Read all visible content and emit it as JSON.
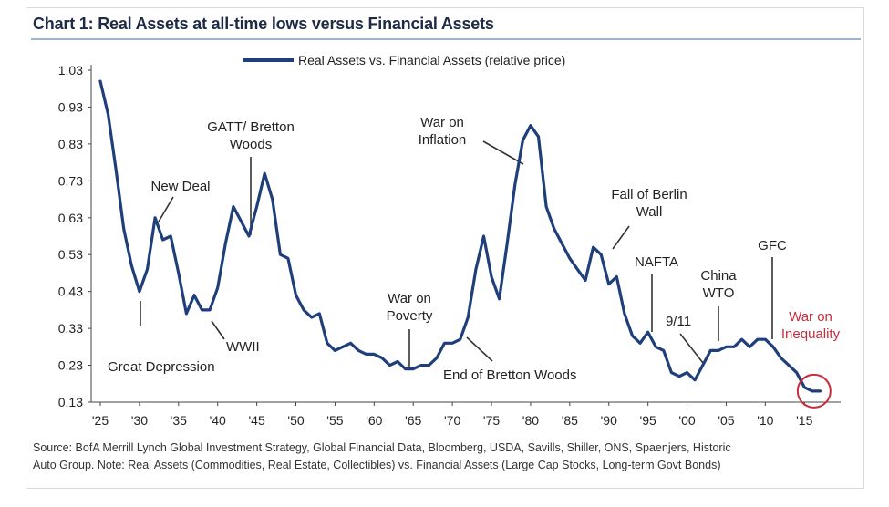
{
  "page_title": "Chart 1:  Real Assets at all-time lows versus Financial Assets",
  "source_note": {
    "line1": "Source:  BofA Merrill Lynch Global Investment Strategy, Global Financial Data, Bloomberg, USDA, Savills, Shiller, ONS, Spaenjers, Historic",
    "line2": "Auto Group. Note:  Real Assets (Commodities, Real Estate, Collectibles) vs. Financial Assets (Large Cap Stocks, Long-term Govt Bonds)"
  },
  "colors": {
    "series": "#1f3f7a",
    "highlight": "#cc2b3b",
    "annotation": "#222222"
  },
  "chart_data": {
    "type": "line",
    "title": "",
    "xlabel": "",
    "ylabel": "",
    "xlim": [
      1925,
      2018
    ],
    "ylim": [
      0.13,
      1.03
    ],
    "yticks": [
      1.03,
      0.93,
      0.83,
      0.73,
      0.63,
      0.53,
      0.43,
      0.33,
      0.23,
      0.13
    ],
    "ytick_labels": [
      "1.03",
      "0.93",
      "0.83",
      "0.73",
      "0.63",
      "0.53",
      "0.43",
      "0.33",
      "0.23",
      "0.13"
    ],
    "xticks": [
      1925,
      1930,
      1935,
      1940,
      1945,
      1950,
      1955,
      1960,
      1965,
      1970,
      1975,
      1980,
      1985,
      1990,
      1995,
      2000,
      2005,
      2010,
      2015
    ],
    "xtick_labels": [
      "'25",
      "'30",
      "'35",
      "'40",
      "'45",
      "'50",
      "'55",
      "'60",
      "'65",
      "'70",
      "'75",
      "'80",
      "'85",
      "'90",
      "'95",
      "'00",
      "'05",
      "'10",
      "'15"
    ],
    "grid": false,
    "legend_position": "top-center",
    "series": [
      {
        "name": "Real Assets vs. Financial Assets (relative price)",
        "x": [
          1925,
          1926,
          1927,
          1928,
          1929,
          1930,
          1931,
          1932,
          1933,
          1934,
          1935,
          1936,
          1937,
          1938,
          1939,
          1940,
          1941,
          1942,
          1943,
          1944,
          1945,
          1946,
          1947,
          1948,
          1949,
          1950,
          1951,
          1952,
          1953,
          1954,
          1955,
          1956,
          1957,
          1958,
          1959,
          1960,
          1961,
          1962,
          1963,
          1964,
          1965,
          1966,
          1967,
          1968,
          1969,
          1970,
          1971,
          1972,
          1973,
          1974,
          1975,
          1976,
          1977,
          1978,
          1979,
          1980,
          1981,
          1982,
          1983,
          1984,
          1985,
          1986,
          1987,
          1988,
          1989,
          1990,
          1991,
          1992,
          1993,
          1994,
          1995,
          1996,
          1997,
          1998,
          1999,
          2000,
          2001,
          2002,
          2003,
          2004,
          2005,
          2006,
          2007,
          2008,
          2009,
          2010,
          2011,
          2012,
          2013,
          2014,
          2015,
          2016,
          2017
        ],
        "values": [
          1.0,
          0.91,
          0.76,
          0.6,
          0.5,
          0.43,
          0.49,
          0.63,
          0.57,
          0.58,
          0.48,
          0.37,
          0.42,
          0.38,
          0.38,
          0.44,
          0.56,
          0.66,
          0.62,
          0.58,
          0.66,
          0.75,
          0.68,
          0.53,
          0.52,
          0.42,
          0.38,
          0.36,
          0.37,
          0.29,
          0.27,
          0.28,
          0.29,
          0.27,
          0.26,
          0.26,
          0.25,
          0.23,
          0.24,
          0.22,
          0.22,
          0.23,
          0.23,
          0.25,
          0.29,
          0.29,
          0.3,
          0.36,
          0.49,
          0.58,
          0.47,
          0.41,
          0.56,
          0.72,
          0.84,
          0.88,
          0.85,
          0.66,
          0.6,
          0.56,
          0.52,
          0.49,
          0.46,
          0.55,
          0.53,
          0.45,
          0.47,
          0.37,
          0.31,
          0.29,
          0.32,
          0.28,
          0.27,
          0.21,
          0.2,
          0.21,
          0.19,
          0.23,
          0.27,
          0.27,
          0.28,
          0.28,
          0.3,
          0.28,
          0.3,
          0.3,
          0.28,
          0.25,
          0.23,
          0.21,
          0.17,
          0.16,
          0.16
        ]
      }
    ],
    "annotations": [
      {
        "text": "Great Depression",
        "year": 1930
      },
      {
        "text": "New Deal",
        "year": 1934
      },
      {
        "text": "WWII",
        "year": 1940
      },
      {
        "text": "GATT/ Bretton",
        "text2": "Woods",
        "year": 1944
      },
      {
        "text": "War on",
        "text2": "Poverty",
        "year": 1964
      },
      {
        "text": "End of Bretton Woods",
        "year": 1971
      },
      {
        "text": "War on",
        "text2": "Inflation",
        "year": 1978
      },
      {
        "text": "Fall of Berlin",
        "text2": "Wall",
        "year": 1989
      },
      {
        "text": "NAFTA",
        "year": 1994
      },
      {
        "text": "9/11",
        "year": 2001
      },
      {
        "text": "China",
        "text2": "WTO",
        "year": 2002
      },
      {
        "text": "GFC",
        "year": 2008
      },
      {
        "text": "War on",
        "text2": "Inequality",
        "year": 2016,
        "highlight": true
      }
    ]
  }
}
